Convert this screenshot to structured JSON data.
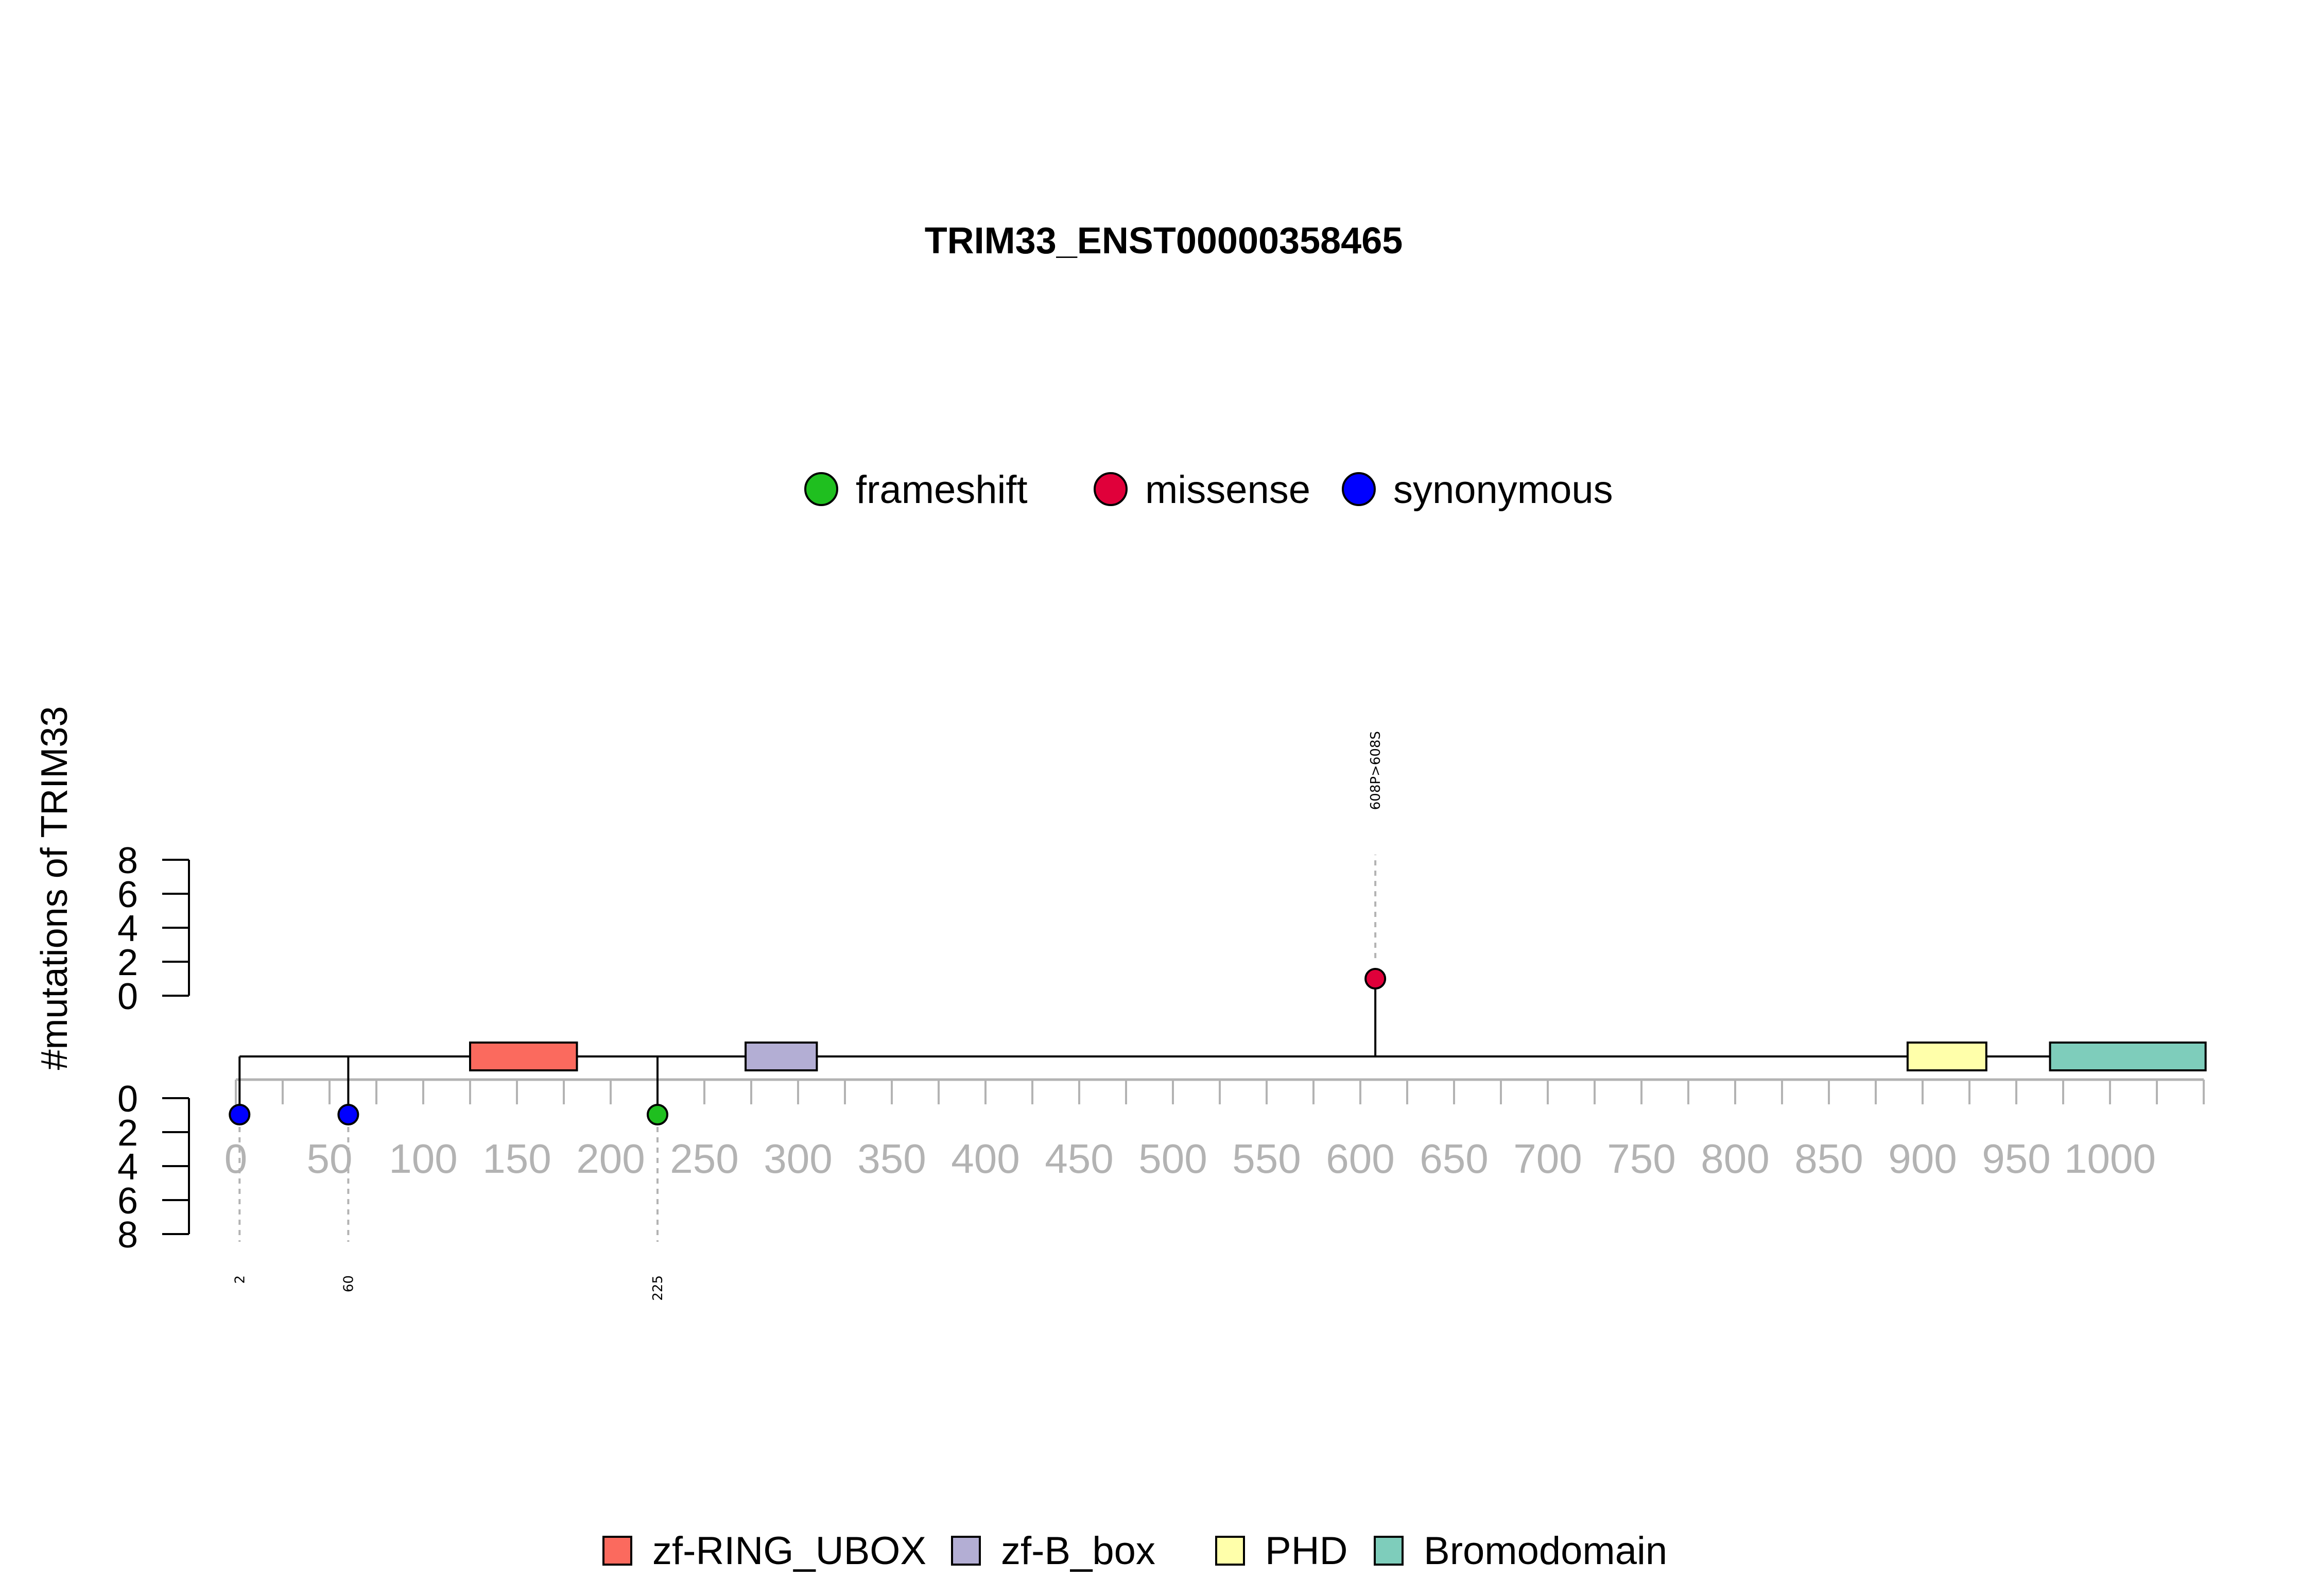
{
  "chart_data": {
    "type": "lollipop",
    "title": "TRIM33_ENST00000358465",
    "ylabel": "#mutations of TRIM33",
    "x_ticks": [
      0,
      50,
      100,
      150,
      200,
      250,
      300,
      350,
      400,
      450,
      500,
      550,
      600,
      650,
      700,
      750,
      800,
      850,
      900,
      950,
      1000
    ],
    "xlim": [
      0,
      1050
    ],
    "protein_length": 1050,
    "y_ticks": [
      0,
      2,
      4,
      6,
      8
    ],
    "ylim_top": [
      0,
      8
    ],
    "ylim_bottom": [
      0,
      8
    ],
    "mutation_types": [
      {
        "name": "frameshift",
        "color": "#1fbf1f"
      },
      {
        "name": "missense",
        "color": "#e0003a"
      },
      {
        "name": "synonymous",
        "color": "#0000ff"
      }
    ],
    "domains": [
      {
        "name": "zf-RING_UBOX",
        "start": 125,
        "end": 182,
        "color": "#fb6a5e"
      },
      {
        "name": "zf-B_box",
        "start": 272,
        "end": 310,
        "color": "#b3aed4"
      },
      {
        "name": "PHD",
        "start": 892,
        "end": 934,
        "color": "#ffffaa"
      },
      {
        "name": "Bromodomain",
        "start": 968,
        "end": 1051,
        "color": "#7ecdbb"
      }
    ],
    "mutations": [
      {
        "position": 608,
        "count": 1,
        "type": "missense",
        "label": "608P>608S",
        "side": "top"
      },
      {
        "position": 2,
        "count": 1,
        "type": "synonymous",
        "label": "2",
        "side": "bottom"
      },
      {
        "position": 60,
        "count": 1,
        "type": "synonymous",
        "label": "60",
        "side": "bottom"
      },
      {
        "position": 225,
        "count": 1,
        "type": "frameshift",
        "label": "225",
        "side": "bottom"
      }
    ]
  }
}
